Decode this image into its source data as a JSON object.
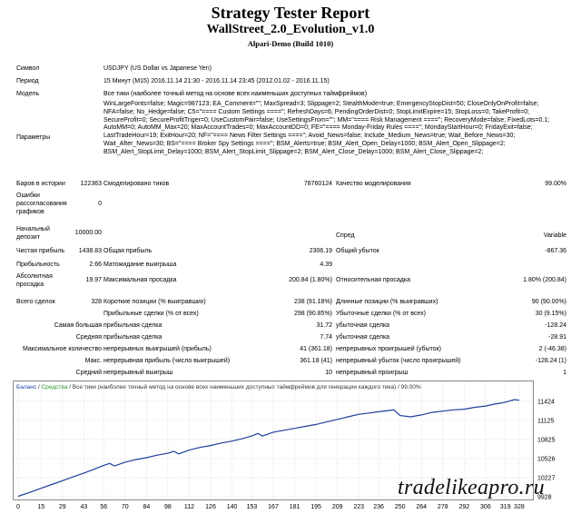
{
  "header": {
    "title": "Strategy Tester Report",
    "expert": "WallStreet_2.0_Evolution_v1.0",
    "server": "Alpari-Demo (Build 1010)"
  },
  "info": {
    "symbol_label": "Символ",
    "symbol_value": "USDJPY (US Dollar vs Japanese Yen)",
    "period_label": "Период",
    "period_value": "15 Минут (M15)  2016.11.14 21:30 - 2016.11.14 23:45 (2012.01.02 - 2016.11.15)",
    "model_label": "Модель",
    "model_value": "Все тики (наиболее точный метод на основе всех наименьших доступных таймфреймов)",
    "params_label": "Параметры",
    "params_value": "WinLargeFonts=false; Magic=987123; EA_Comment=\"\"; MaxSpread=3; Slippage=2; StealthMode=true; EmergencyStopDist=50; CloseOnlyOnProfit=false; NFA=false; No_Hedge=false; C5=\"==== Custom Settings ====\"; RefreshDays=6; PendingOrderDist=0; StopLimitExpire=15; StopLoss=0; TakeProfit=0; SecureProfit=0; SecureProfitTriger=0; UseCustomPair=false; UseSettingsFrom=\"\"; MM=\"==== Risk Management ====\"; RecoveryMode=false; FixedLots=0.1; AutoMM=0; AutoMM_Max=20; MaxAccountTrades=0; MaxAccountDD=0; FE=\"==== Monday-Friday Rules ====\"; MondayStartHour=0; FridayExit=false; LastTradeHour=19; ExitHour=20; NF=\"==== News Filter Settings ====\"; Avoid_News=false; Include_Medium_News=true; Wait_Before_News=30; Wait_After_News=30; BS=\"==== Broker Spy Settings ====\"; BSM_Alerts=true; BSM_Alert_Open_Delay=1000; BSM_Alert_Open_Slippage=2; BSM_Alert_StopLimit_Delay=1000; BSM_Alert_StopLimit_Slippage=2; BSM_Alert_Close_Delay=1000; BSM_Alert_Close_Slippage=2;"
  },
  "stats": {
    "bars_label": "Баров в истории",
    "bars_value": "122363",
    "ticks_label": "Смоделировано тиков",
    "ticks_value": "78760124",
    "quality_label": "Качество моделирования",
    "quality_value": "99.00%",
    "errors_label": "Ошибки рассогласования графиков",
    "errors_value": "0",
    "deposit_label": "Начальный депозит",
    "deposit_value": "10000.00",
    "spread_label": "Спред",
    "spread_value": "Variable",
    "net_profit_label": "Чистая прибыль",
    "net_profit_value": "1438.83",
    "gross_profit_label": "Общая прибыль",
    "gross_profit_value": "2306.19",
    "gross_loss_label": "Общий убыток",
    "gross_loss_value": "-867.36",
    "profit_factor_label": "Прибыльность",
    "profit_factor_value": "2.66",
    "expected_payoff_label": "Матожидание выигрыша",
    "expected_payoff_value": "4.39",
    "abs_dd_label": "Абсолютная просадка",
    "abs_dd_value": "19.97",
    "max_dd_label": "Максимальная просадка",
    "max_dd_value": "200.84 (1.80%)",
    "rel_dd_label": "Относительная просадка",
    "rel_dd_value": "1.80% (200.84)",
    "total_trades_label": "Всего сделок",
    "total_trades_value": "328",
    "short_label": "Короткие позиции (% выигравших)",
    "short_value": "238 (91.18%)",
    "long_label": "Длинные позиции (% выигравших)",
    "long_value": "90 (90.00%)",
    "profit_trades_label": "Прибыльные сделки (% от всех)",
    "profit_trades_value": "298 (90.85%)",
    "loss_trades_label": "Убыточные сделки (% от всех)",
    "loss_trades_value": "30 (9.15%)",
    "largest_label": "Самая большая",
    "largest_profit_label": "прибыльная сделка",
    "largest_profit_value": "31.72",
    "largest_loss_label": "убыточная сделка",
    "largest_loss_value": "-128.24",
    "average_label": "Средняя",
    "average_profit_label": "прибыльная сделка",
    "average_profit_value": "7.74",
    "average_loss_label": "убыточная сделка",
    "average_loss_value": "-28.91",
    "max_count_label": "Максимальное количество",
    "cons_wins_label": "непрерывных выигрышей (прибыль)",
    "cons_wins_value": "41 (361.18)",
    "cons_losses_label": "непрерывных проигрышей (убыток)",
    "cons_losses_value": "2 (-46.38)",
    "max_label": "Макс.",
    "cons_profit_label": "непрерывная прибыль (число выигрышей)",
    "cons_profit_value": "361.18 (41)",
    "cons_loss_label": "непрерывный убыток (число проигрышей)",
    "cons_loss_value": "-128.24 (1)",
    "avg_label": "Средний",
    "avg_wins_label": "непрерывный выигрыш",
    "avg_wins_value": "10",
    "avg_losses_label": "непрерывный проигрыш",
    "avg_losses_value": "1"
  },
  "chart_data": {
    "type": "line",
    "legend_balance": "Баланс",
    "legend_sep1": " / ",
    "legend_equity": "Средства",
    "legend_rest": " / Все тики (наиболее точный метод на основе всех наименьших доступных таймфреймов для генерации каждого тика) / 99.00%",
    "x_ticks": [
      0,
      15,
      29,
      43,
      56,
      70,
      84,
      98,
      112,
      126,
      140,
      153,
      167,
      181,
      195,
      209,
      223,
      236,
      250,
      264,
      278,
      292,
      306,
      319,
      328
    ],
    "y_ticks": [
      9928,
      10227,
      10526,
      10825,
      11125,
      11424
    ],
    "xlim": [
      0,
      334
    ],
    "ylim": [
      9928,
      11550
    ],
    "balance_color": "#1f3f9c",
    "series": [
      {
        "x": [
          0,
          8,
          15,
          22,
          29,
          36,
          43,
          50,
          56,
          60,
          63,
          70,
          77,
          84,
          91,
          98,
          102,
          105,
          112,
          119,
          126,
          133,
          140,
          147,
          153,
          157,
          160,
          167,
          174,
          181,
          188,
          195,
          202,
          209,
          216,
          223,
          230,
          236,
          243,
          246,
          250,
          257,
          264,
          271,
          278,
          285,
          292,
          299,
          306,
          312,
          316,
          319,
          322,
          325,
          328
        ],
        "values": [
          9935,
          10000,
          10060,
          10120,
          10180,
          10240,
          10300,
          10360,
          10420,
          10450,
          10410,
          10470,
          10510,
          10540,
          10580,
          10610,
          10640,
          10600,
          10660,
          10700,
          10730,
          10770,
          10800,
          10840,
          10880,
          10920,
          10880,
          10940,
          10970,
          11000,
          11030,
          11060,
          11100,
          11140,
          11180,
          11220,
          11240,
          11260,
          11280,
          11290,
          11200,
          11180,
          11210,
          11250,
          11270,
          11290,
          11300,
          11330,
          11350,
          11380,
          11395,
          11410,
          11430,
          11450,
          11440
        ]
      }
    ]
  },
  "watermark": "tradelikeapro.ru"
}
